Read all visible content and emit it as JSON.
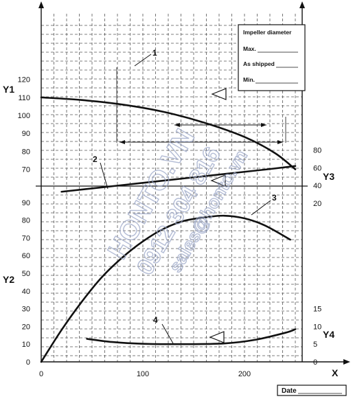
{
  "chart_data": {
    "type": "line",
    "title": "",
    "x_axis": {
      "label": "X",
      "ticks": [
        0,
        100,
        200
      ],
      "range": [
        0,
        290
      ],
      "grid": true
    },
    "y_axes": {
      "Y1": {
        "label": "Y1",
        "ticks": [
          70,
          80,
          90,
          100,
          110,
          120
        ],
        "range": [
          60,
          130
        ],
        "side": "left",
        "panel": "top"
      },
      "Y2": {
        "label": "Y2",
        "ticks": [
          0,
          10,
          20,
          30,
          40,
          50,
          60,
          70,
          80,
          90
        ],
        "range": [
          0,
          98
        ],
        "side": "left",
        "panel": "bottom"
      },
      "Y3": {
        "label": "Y3",
        "ticks": [
          20,
          40,
          60,
          80
        ],
        "range": [
          20,
          90
        ],
        "side": "right",
        "panel": "middle"
      },
      "Y4": {
        "label": "Y4",
        "ticks": [
          0,
          5,
          10,
          15
        ],
        "range": [
          0,
          17
        ],
        "side": "right",
        "panel": "bottom"
      }
    },
    "series": [
      {
        "name": "1",
        "axis": "Y1",
        "x": [
          0,
          40,
          80,
          120,
          160,
          200,
          230,
          250
        ],
        "y": [
          110,
          108.5,
          106,
          102,
          96,
          88,
          79,
          70
        ]
      },
      {
        "name": "2",
        "axis": "Y3",
        "x": [
          20,
          60,
          100,
          140,
          180,
          220,
          250
        ],
        "y": [
          33,
          38,
          43,
          48,
          53,
          58,
          62
        ]
      },
      {
        "name": "3",
        "axis": "Y2",
        "x": [
          0,
          20,
          40,
          60,
          80,
          100,
          120,
          140,
          160,
          180,
          200,
          220,
          245
        ],
        "y": [
          0,
          18,
          34,
          48,
          59,
          68,
          75,
          79.5,
          81.5,
          82.5,
          81,
          77,
          69
        ]
      },
      {
        "name": "4",
        "axis": "Y4",
        "x": [
          45,
          70,
          100,
          140,
          180,
          210,
          240,
          250
        ],
        "y": [
          6.5,
          5.6,
          5.1,
          5.0,
          5.2,
          6.2,
          8.2,
          9.2
        ]
      }
    ],
    "annotations": {
      "curve_labels": [
        "1",
        "2",
        "3",
        "4"
      ],
      "info_box": {
        "title": "Impeller diameter",
        "rows": [
          "Max.",
          "As shipped",
          "Min."
        ]
      }
    },
    "footer": {
      "date_label": "Date"
    },
    "legend": "none"
  },
  "watermark": {
    "line1": "HONTO.VN",
    "line2": "0912 304 816",
    "line3": "sales@honto.vn"
  }
}
